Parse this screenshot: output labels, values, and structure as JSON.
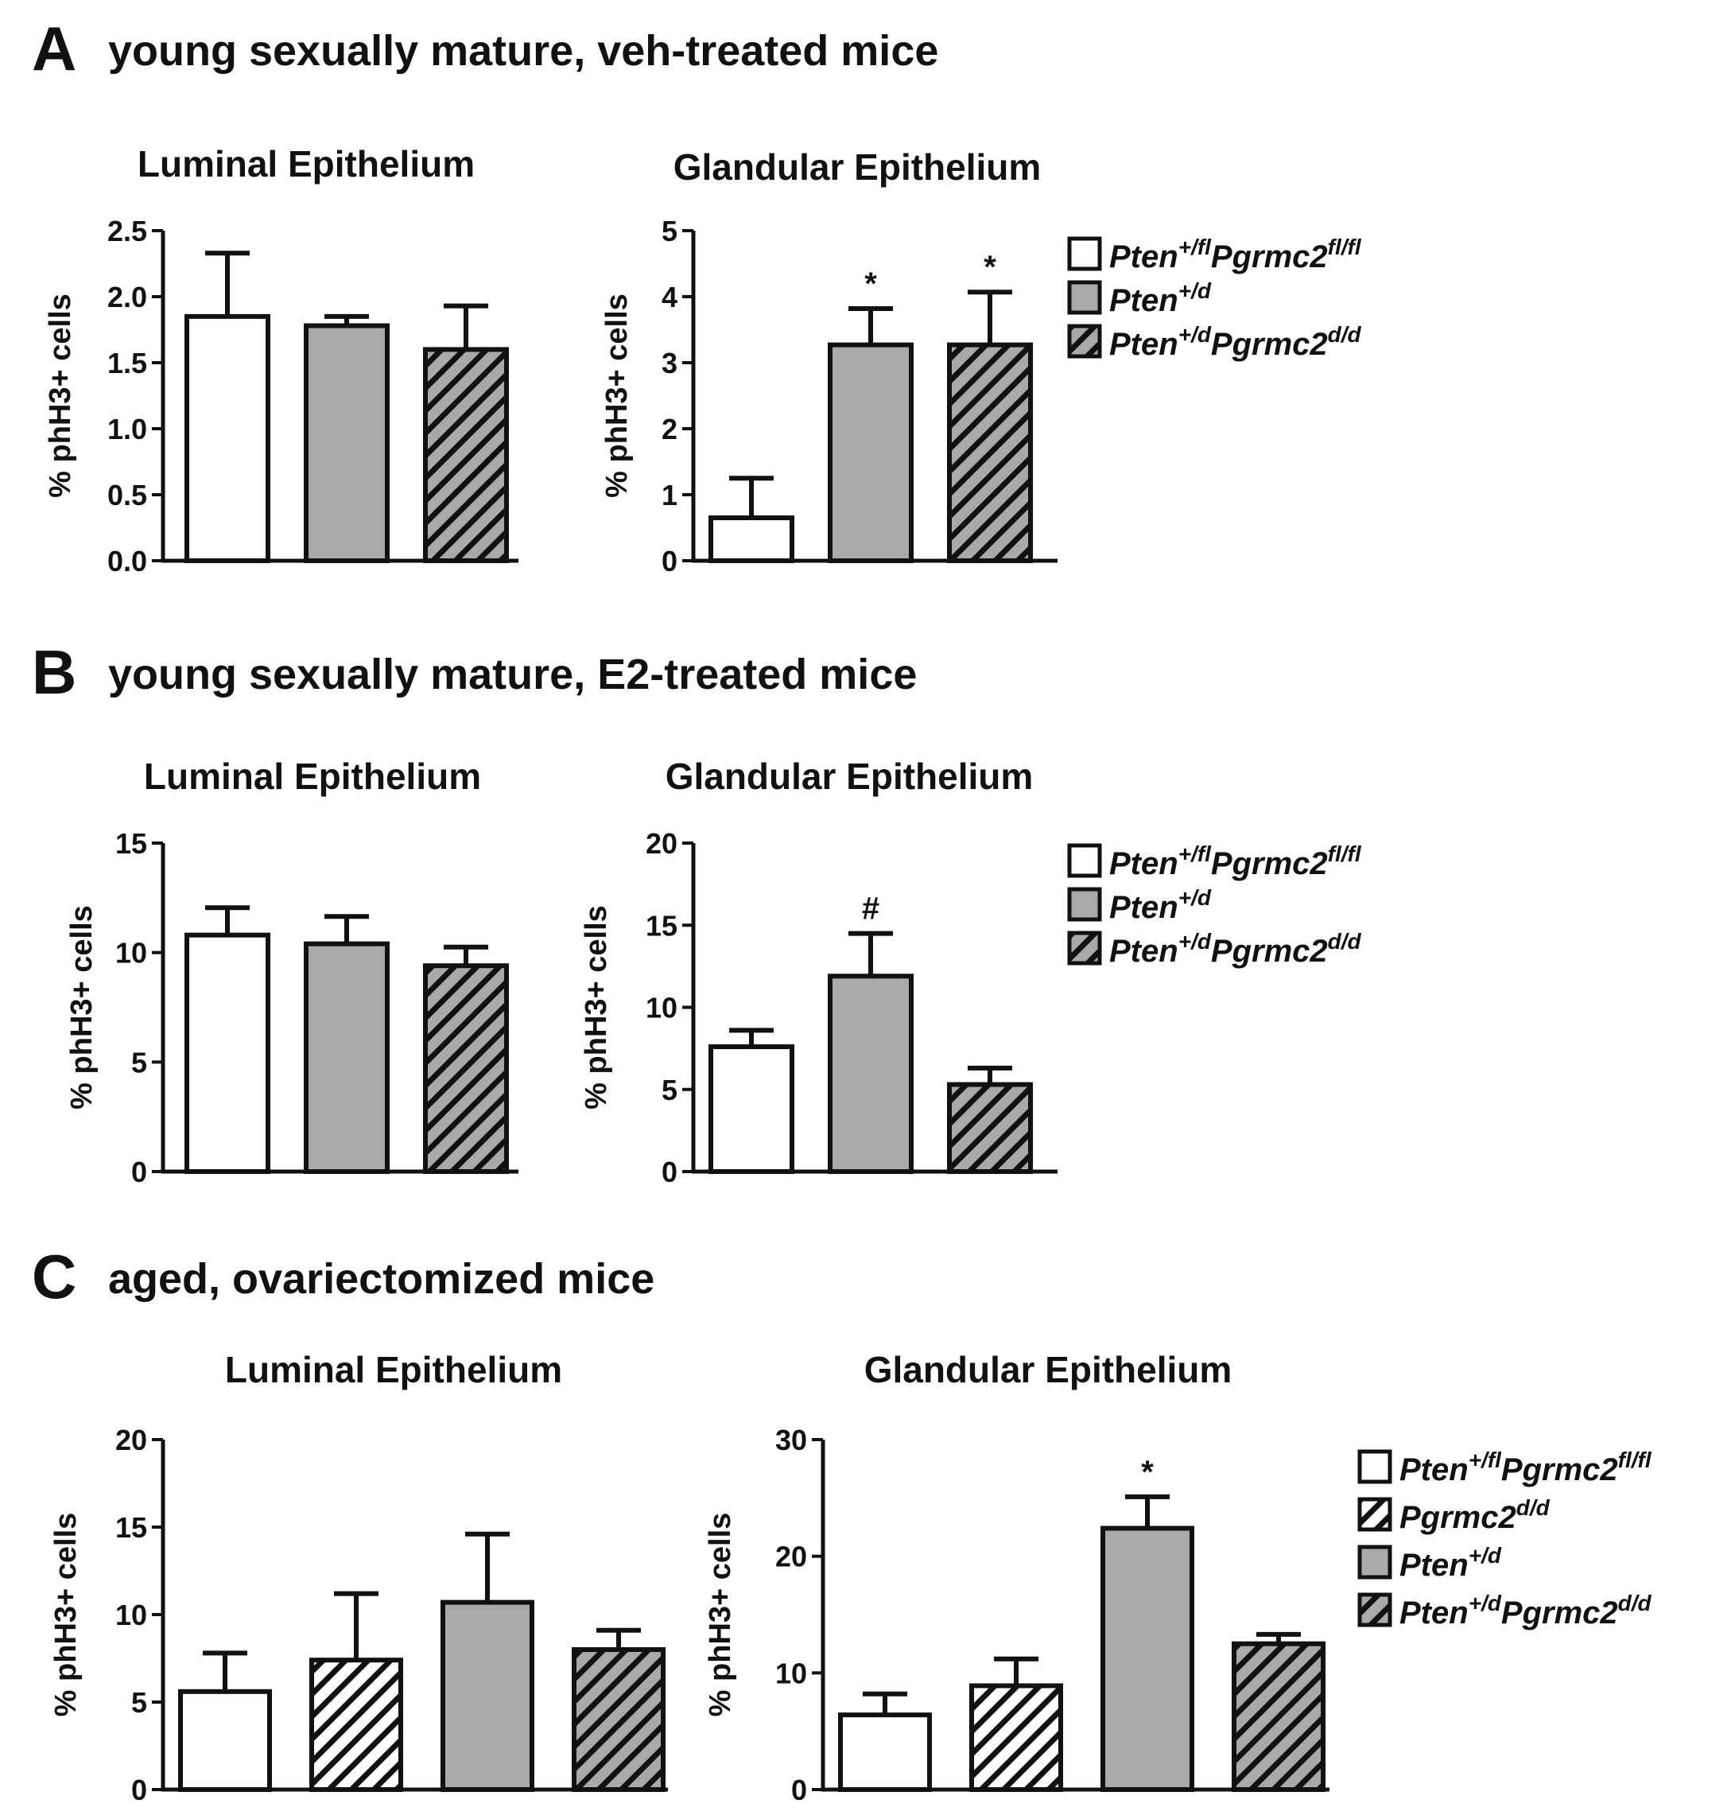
{
  "colors": {
    "ink": "#111111",
    "white_fill": "#ffffff",
    "gray_fill": "#a8a9ad",
    "hatch_line": "#111111"
  },
  "sections": [
    {
      "letter": "A",
      "heading": "young sexually mature, veh-treated mice",
      "legend": [
        {
          "base": "Pten",
          "sup": "+/fl",
          "base2": "Pgrmc2",
          "sup2": "fl/fl",
          "pattern": "white"
        },
        {
          "base": "Pten",
          "sup": "+/d",
          "base2": "",
          "sup2": "",
          "pattern": "gray"
        },
        {
          "base": "Pten",
          "sup": "+/d",
          "base2": "Pgrmc2",
          "sup2": "d/d",
          "pattern": "gray-hatch"
        }
      ]
    },
    {
      "letter": "B",
      "heading": "young sexually mature, E2-treated mice",
      "legend": [
        {
          "base": "Pten",
          "sup": "+/fl",
          "base2": "Pgrmc2",
          "sup2": "fl/fl",
          "pattern": "white"
        },
        {
          "base": "Pten",
          "sup": "+/d",
          "base2": "",
          "sup2": "",
          "pattern": "gray"
        },
        {
          "base": "Pten",
          "sup": "+/d",
          "base2": "Pgrmc2",
          "sup2": "d/d",
          "pattern": "gray-hatch"
        }
      ]
    },
    {
      "letter": "C",
      "heading": "aged, ovariectomized mice",
      "legend": [
        {
          "base": "Pten",
          "sup": "+/fl",
          "base2": "Pgrmc2",
          "sup2": "fl/fl",
          "pattern": "white"
        },
        {
          "base": "Pgrmc2",
          "sup": "d/d",
          "base2": "",
          "sup2": "",
          "pattern": "white-hatch"
        },
        {
          "base": "Pten",
          "sup": "+/d",
          "base2": "",
          "sup2": "",
          "pattern": "gray"
        },
        {
          "base": "Pten",
          "sup": "+/d",
          "base2": "Pgrmc2",
          "sup2": "d/d",
          "pattern": "gray-hatch"
        }
      ]
    }
  ],
  "chart_data": [
    {
      "type": "bar",
      "panel": "A",
      "title": "Luminal Epithelium",
      "ylabel": "% phH3+ cells",
      "ylim": [
        0,
        2.5
      ],
      "yticks": [
        "0.0",
        "0.5",
        "1.0",
        "1.5",
        "2.0",
        "2.5"
      ],
      "groups": [
        "Pten+/fl Pgrmc2fl/fl",
        "Pten+/d",
        "Pten+/d Pgrmc2d/d"
      ],
      "patterns": [
        "white",
        "gray",
        "gray-hatch"
      ],
      "values": [
        1.85,
        1.78,
        1.6
      ],
      "errors": [
        0.48,
        0.07,
        0.33
      ],
      "annotations": [
        "",
        "",
        ""
      ]
    },
    {
      "type": "bar",
      "panel": "A",
      "title": "Glandular Epithelium",
      "ylabel": "% phH3+ cells",
      "ylim": [
        0,
        5
      ],
      "yticks": [
        "0",
        "1",
        "2",
        "3",
        "4",
        "5"
      ],
      "groups": [
        "Pten+/fl Pgrmc2fl/fl",
        "Pten+/d",
        "Pten+/d Pgrmc2d/d"
      ],
      "patterns": [
        "white",
        "gray",
        "gray-hatch"
      ],
      "values": [
        0.65,
        3.27,
        3.27
      ],
      "errors": [
        0.6,
        0.55,
        0.8
      ],
      "annotations": [
        "",
        "*",
        "*"
      ]
    },
    {
      "type": "bar",
      "panel": "B",
      "title": "Luminal Epithelium",
      "ylabel": "% phH3+ cells",
      "ylim": [
        0,
        15
      ],
      "yticks": [
        "0",
        "5",
        "10",
        "15"
      ],
      "groups": [
        "Pten+/fl Pgrmc2fl/fl",
        "Pten+/d",
        "Pten+/d Pgrmc2d/d"
      ],
      "patterns": [
        "white",
        "gray",
        "gray-hatch"
      ],
      "values": [
        10.8,
        10.4,
        9.4
      ],
      "errors": [
        1.25,
        1.25,
        0.85
      ],
      "annotations": [
        "",
        "",
        ""
      ]
    },
    {
      "type": "bar",
      "panel": "B",
      "title": "Glandular Epithelium",
      "ylabel": "% phH3+ cells",
      "ylim": [
        0,
        20
      ],
      "yticks": [
        "0",
        "5",
        "10",
        "15",
        "20"
      ],
      "groups": [
        "Pten+/fl Pgrmc2fl/fl",
        "Pten+/d",
        "Pten+/d Pgrmc2d/d"
      ],
      "patterns": [
        "white",
        "gray",
        "gray-hatch"
      ],
      "values": [
        7.6,
        11.9,
        5.3
      ],
      "errors": [
        1.0,
        2.6,
        1.0
      ],
      "annotations": [
        "",
        "#",
        ""
      ]
    },
    {
      "type": "bar",
      "panel": "C",
      "title": "Luminal  Epithelium",
      "ylabel": "% phH3+ cells",
      "ylim": [
        0,
        20
      ],
      "yticks": [
        "0",
        "5",
        "10",
        "15",
        "20"
      ],
      "groups": [
        "Pten+/fl Pgrmc2fl/fl",
        "Pgrmc2d/d",
        "Pten+/d",
        "Pten+/d Pgrmc2d/d"
      ],
      "patterns": [
        "white",
        "white-hatch",
        "gray",
        "gray-hatch"
      ],
      "values": [
        5.6,
        7.4,
        10.7,
        8.0
      ],
      "errors": [
        2.2,
        3.8,
        3.9,
        1.1
      ],
      "annotations": [
        "",
        "",
        "",
        ""
      ]
    },
    {
      "type": "bar",
      "panel": "C",
      "title": "Glandular Epithelium",
      "ylabel": "% phH3+ cells",
      "ylim": [
        0,
        30
      ],
      "yticks": [
        "0",
        "10",
        "20",
        "30"
      ],
      "groups": [
        "Pten+/fl Pgrmc2fl/fl",
        "Pgrmc2d/d",
        "Pten+/d",
        "Pten+/d Pgrmc2d/d"
      ],
      "patterns": [
        "white",
        "white-hatch",
        "gray",
        "gray-hatch"
      ],
      "values": [
        6.4,
        8.9,
        22.4,
        12.5
      ],
      "errors": [
        1.8,
        2.3,
        2.7,
        0.8
      ],
      "annotations": [
        "",
        "",
        "*",
        ""
      ]
    }
  ]
}
